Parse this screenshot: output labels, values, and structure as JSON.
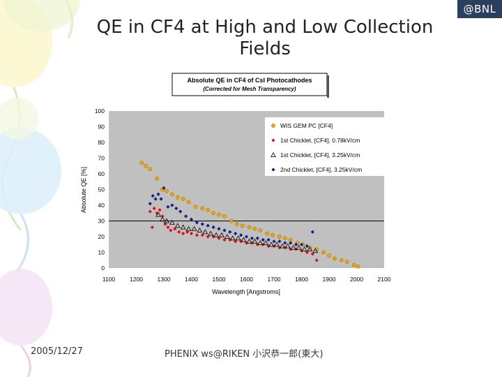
{
  "badge": "@BNL",
  "slide_title_line1": "QE in CF4 at High and Low Collection",
  "slide_title_line2": "Fields",
  "footer": {
    "date": "2005/12/27",
    "event": "PHENIX ws@RIKEN 小沢恭一郎(東大)"
  },
  "chart_data": {
    "type": "scatter",
    "title": "Absolute QE in CF4 of CsI Photocathodes",
    "subtitle": "(Corrected for Mesh Transparency)",
    "xlabel": "Wavelength [Angstroms]",
    "ylabel": "Absolute QE [%]",
    "xlim": [
      1100,
      2100
    ],
    "ylim": [
      0,
      100
    ],
    "xticks": [
      1100,
      1200,
      1300,
      1400,
      1500,
      1600,
      1700,
      1800,
      1900,
      2000,
      2100
    ],
    "yticks": [
      0,
      10,
      20,
      30,
      40,
      50,
      60,
      70,
      80,
      90,
      100
    ],
    "reference_line_y": 30,
    "grid": false,
    "legend_position": "top-right",
    "plot_background": "#c0c0c0",
    "series": [
      {
        "name": "WIS GEM PC [CF4]",
        "marker": "circle",
        "color": "#f0a800",
        "x": [
          1220,
          1235,
          1250,
          1275,
          1295,
          1310,
          1330,
          1350,
          1370,
          1390,
          1415,
          1440,
          1460,
          1480,
          1500,
          1520,
          1545,
          1565,
          1585,
          1610,
          1630,
          1650,
          1675,
          1695,
          1720,
          1740,
          1760,
          1785,
          1805,
          1830,
          1855,
          1880,
          1900,
          1920,
          1945,
          1965,
          1990,
          2005
        ],
        "y": [
          67,
          65,
          63,
          57,
          50,
          49,
          47,
          45,
          44,
          42,
          39,
          38,
          37,
          35,
          34,
          33,
          30,
          28,
          27,
          26,
          25,
          24,
          22,
          21,
          20,
          19,
          18,
          16,
          15,
          13,
          12,
          10,
          8,
          6,
          5,
          4,
          2,
          1
        ]
      },
      {
        "name": "1st Chicklet, [CF4],  0.78kV/cm",
        "marker": "diamond",
        "color": "#e01010",
        "x": [
          1250,
          1258,
          1265,
          1275,
          1285,
          1295,
          1305,
          1315,
          1325,
          1340,
          1355,
          1370,
          1385,
          1400,
          1420,
          1440,
          1460,
          1480,
          1500,
          1520,
          1540,
          1560,
          1580,
          1600,
          1620,
          1640,
          1660,
          1680,
          1700,
          1720,
          1740,
          1760,
          1780,
          1800,
          1820,
          1840,
          1855
        ],
        "y": [
          36,
          26,
          38,
          35,
          37,
          33,
          28,
          26,
          24,
          25,
          23,
          22,
          23,
          22,
          21,
          21,
          20,
          20,
          19,
          18,
          18,
          17,
          17,
          16,
          16,
          15,
          15,
          14,
          14,
          13,
          13,
          12,
          12,
          11,
          10,
          9,
          5
        ]
      },
      {
        "name": "1st Chicklet, [CF4], 3.25kV/cm",
        "marker": "triangle",
        "color": "#111111",
        "x": [
          1280,
          1295,
          1310,
          1330,
          1350,
          1370,
          1390,
          1410,
          1430,
          1450,
          1470,
          1490,
          1510,
          1530,
          1550,
          1570,
          1590,
          1610,
          1630,
          1650,
          1670,
          1690,
          1710,
          1730,
          1750,
          1770,
          1790,
          1810,
          1830,
          1850
        ],
        "y": [
          34,
          31,
          30,
          29,
          27,
          26,
          25,
          25,
          24,
          23,
          22,
          21,
          21,
          20,
          19,
          19,
          18,
          17,
          17,
          16,
          16,
          15,
          15,
          14,
          14,
          13,
          13,
          12,
          12,
          11
        ]
      },
      {
        "name": "2nd Chicklet, [CF4], 3.25kV/cm",
        "marker": "diamond",
        "color": "#102080",
        "x": [
          1250,
          1260,
          1270,
          1280,
          1290,
          1300,
          1315,
          1330,
          1345,
          1360,
          1380,
          1400,
          1420,
          1440,
          1460,
          1480,
          1500,
          1520,
          1540,
          1560,
          1580,
          1600,
          1620,
          1640,
          1660,
          1680,
          1700,
          1720,
          1740,
          1760,
          1780,
          1800,
          1820,
          1840
        ],
        "y": [
          41,
          46,
          44,
          47,
          44,
          51,
          39,
          40,
          38,
          36,
          33,
          31,
          29,
          28,
          27,
          26,
          25,
          24,
          23,
          22,
          21,
          20,
          19,
          19,
          18,
          18,
          17,
          17,
          16,
          16,
          15,
          15,
          14,
          23
        ]
      }
    ]
  }
}
